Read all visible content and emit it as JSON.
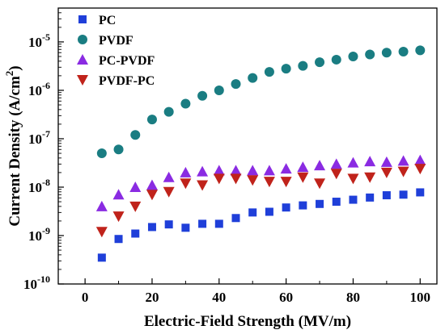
{
  "chart_data": {
    "type": "scatter",
    "xlabel": "Electric-Field Strength (MV/m)",
    "ylabel": "Current Density (A/cm²)",
    "ylabel_parts": {
      "main": "Current Density (A/cm",
      "sup": "2",
      "tail": ")"
    },
    "x_scale": "linear",
    "y_scale": "log",
    "xlim": [
      -8,
      105
    ],
    "ylim": [
      1e-10,
      5e-05
    ],
    "x_ticks": [
      0,
      20,
      40,
      60,
      80,
      100
    ],
    "y_ticks": [
      {
        "value": 1e-10,
        "base": "10",
        "exp": "-10"
      },
      {
        "value": 1e-09,
        "base": "10",
        "exp": "-9"
      },
      {
        "value": 1e-08,
        "base": "10",
        "exp": "-8"
      },
      {
        "value": 1e-07,
        "base": "10",
        "exp": "-7"
      },
      {
        "value": 1e-06,
        "base": "10",
        "exp": "-6"
      },
      {
        "value": 1e-05,
        "base": "10",
        "exp": "-5"
      }
    ],
    "grid": false,
    "legend_position": "top-left",
    "x": [
      5,
      10,
      15,
      20,
      25,
      30,
      35,
      40,
      45,
      50,
      55,
      60,
      65,
      70,
      75,
      80,
      85,
      90,
      95,
      100
    ],
    "series": [
      {
        "name": "PC",
        "marker": "square",
        "color": "#1f3fd9",
        "values": [
          3.5e-10,
          8.5e-10,
          1.1e-09,
          1.5e-09,
          1.7e-09,
          1.45e-09,
          1.75e-09,
          1.75e-09,
          2.3e-09,
          3e-09,
          3.1e-09,
          3.8e-09,
          4.2e-09,
          4.5e-09,
          5e-09,
          5.5e-09,
          6.1e-09,
          6.8e-09,
          7e-09,
          7.8e-09
        ]
      },
      {
        "name": "PVDF",
        "marker": "circle",
        "color": "#1a7d82",
        "values": [
          5e-08,
          6e-08,
          1.2e-07,
          2.5e-07,
          3.6e-07,
          5.3e-07,
          7.7e-07,
          1e-06,
          1.35e-06,
          1.8e-06,
          2.4e-06,
          2.8e-06,
          3.2e-06,
          3.8e-06,
          4.3e-06,
          5e-06,
          5.5e-06,
          6e-06,
          6.3e-06,
          6.7e-06
        ]
      },
      {
        "name": "PC-PVDF",
        "marker": "triangle-up",
        "color": "#8a2be2",
        "values": [
          4e-09,
          7e-09,
          1e-08,
          1.1e-08,
          1.6e-08,
          2e-08,
          2.1e-08,
          2.2e-08,
          2.2e-08,
          2.2e-08,
          2.2e-08,
          2.4e-08,
          2.6e-08,
          2.8e-08,
          3e-08,
          3.2e-08,
          3.4e-08,
          3.3e-08,
          3.5e-08,
          3.6e-08
        ]
      },
      {
        "name": "PVDF-PC",
        "marker": "triangle-down",
        "color": "#c0231b",
        "values": [
          1.2e-09,
          2.5e-09,
          4e-09,
          7e-09,
          8e-09,
          1.2e-08,
          1.1e-08,
          1.5e-08,
          1.5e-08,
          1.4e-08,
          1.3e-08,
          1.3e-08,
          1.6e-08,
          1.2e-08,
          1.9e-08,
          1.5e-08,
          1.6e-08,
          2e-08,
          2.1e-08,
          2.4e-08
        ]
      }
    ]
  }
}
